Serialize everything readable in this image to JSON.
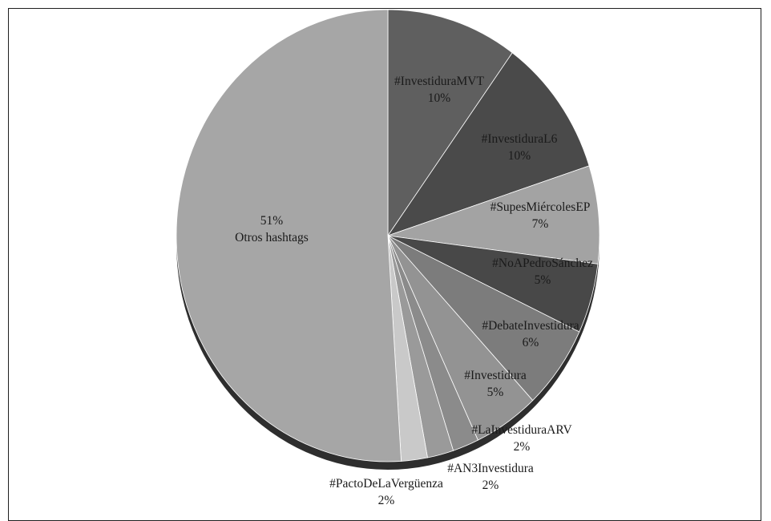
{
  "chart_data": {
    "type": "pie",
    "title": "",
    "slices": [
      {
        "label": "#InvestiduraMVT",
        "pct_text": "10%",
        "value": 10,
        "color": "#5f5f5f",
        "label_above": true
      },
      {
        "label": "#InvestiduraL6",
        "pct_text": "10%",
        "value": 10,
        "color": "#4a4a4a",
        "label_above": true
      },
      {
        "label": "#SupesMiércolesEP",
        "pct_text": "7%",
        "value": 7,
        "color": "#a3a3a3",
        "label_above": true
      },
      {
        "label": "#NoAPedroSánchez",
        "pct_text": "5%",
        "value": 5,
        "color": "#484848",
        "label_above": true
      },
      {
        "label": "#DebateInvestidura",
        "pct_text": "6%",
        "value": 6,
        "color": "#7c7c7c",
        "label_above": true
      },
      {
        "label": "#Investidura",
        "pct_text": "5%",
        "value": 5,
        "color": "#939393",
        "label_above": true
      },
      {
        "label": "#LaInvestiduraARV",
        "pct_text": "2%",
        "value": 2,
        "color": "#8b8b8b",
        "label_above": true
      },
      {
        "label": "#AN3Investidura",
        "pct_text": "2%",
        "value": 2,
        "color": "#9a9a9a",
        "label_above": true
      },
      {
        "label": "#PactoDeLaVergüenza",
        "pct_text": "2%",
        "value": 2,
        "color": "#c9c9c9",
        "label_above": true
      },
      {
        "label": "Otros hashtags",
        "pct_text": "51%",
        "value": 51,
        "color": "#a6a6a6",
        "label_above": false
      }
    ]
  }
}
